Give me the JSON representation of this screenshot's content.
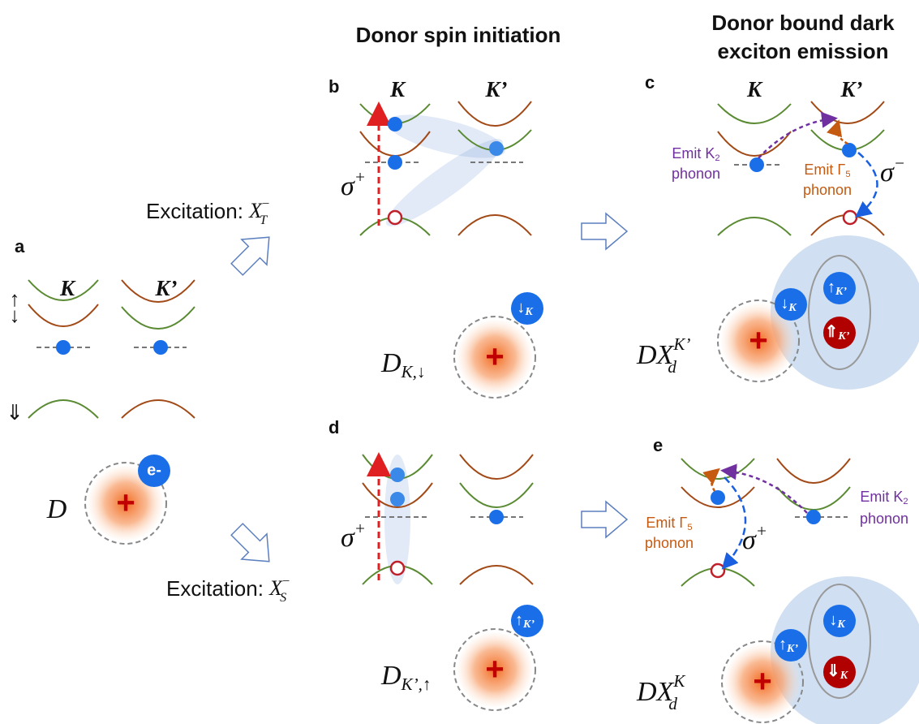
{
  "headings": {
    "b_d": "Donor spin initiation",
    "c_e": [
      "Donor bound dark",
      "exciton emission"
    ]
  },
  "excitations": [
    {
      "text": "Excitation: ",
      "symbol": "X",
      "sub": "T",
      "sup": "−"
    },
    {
      "text": "Excitation: ",
      "symbol": "X",
      "sub": "S",
      "sup": "−"
    }
  ],
  "panels": {
    "a": {
      "label": "a",
      "valleys": [
        "K",
        "K’"
      ],
      "spins": [
        "↑",
        "↓",
        "⇓"
      ],
      "electron": "e-",
      "donor": "D",
      "charge": "+"
    },
    "b": {
      "label": "b",
      "valleys": [
        "K",
        "K’"
      ],
      "polarization": {
        "symbol": "σ",
        "sup": "+"
      },
      "donor": {
        "main": "D",
        "sub": "K,↓"
      },
      "charge": "+",
      "spin": {
        "arrow": "↓",
        "valley": "K"
      }
    },
    "c": {
      "label": "c",
      "valleys": [
        "K",
        "K’"
      ],
      "polarization": {
        "symbol": "σ",
        "sup": "−"
      },
      "phonons": [
        {
          "line1": "Emit K",
          "sub": "2",
          "line2": "phonon"
        },
        {
          "line1": "Emit Γ",
          "sub": "5",
          "line2": "phonon"
        }
      ],
      "donor": {
        "main": "DX",
        "sub": "d",
        "sup": "K’"
      },
      "charge": "+",
      "spins": [
        {
          "arrow": "↓",
          "valley": "K"
        },
        {
          "arrow": "↑",
          "valley": "K’"
        },
        {
          "arrow": "⇑",
          "valley": "K’"
        }
      ]
    },
    "d": {
      "label": "d",
      "polarization": {
        "symbol": "σ",
        "sup": "+"
      },
      "donor": {
        "main": "D",
        "sub": "K’,↑"
      },
      "charge": "+",
      "spin": {
        "arrow": "↑",
        "valley": "K’"
      }
    },
    "e": {
      "label": "e",
      "polarization": {
        "symbol": "σ",
        "sup": "+"
      },
      "phonons": [
        {
          "line1": "Emit Γ",
          "sub": "5",
          "line2": "phonon"
        },
        {
          "line1": "Emit K",
          "sub": "2",
          "line2": "phonon"
        }
      ],
      "donor": {
        "main": "DX",
        "sub": "d",
        "sup": "K"
      },
      "charge": "+",
      "spins": [
        {
          "arrow": "↑",
          "valley": "K’"
        },
        {
          "arrow": "↓",
          "valley": "K"
        },
        {
          "arrow": "⇓",
          "valley": "K"
        }
      ]
    }
  }
}
